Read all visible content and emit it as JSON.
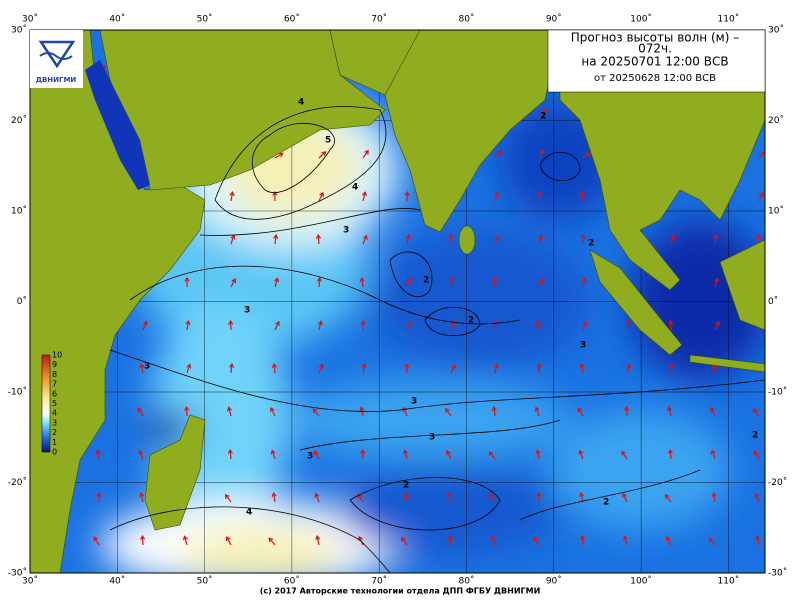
{
  "header": {
    "lines": [
      "Прогноз высоты волн (м) –",
      "072ч.",
      "на 20250701 12:00 ВСВ",
      "от 20250628 12:00 ВСВ"
    ]
  },
  "logo": {
    "text": "ДВНИГМИ"
  },
  "axes": {
    "lon_labels": [
      "30˚",
      "40˚",
      "50˚",
      "60˚",
      "70˚",
      "80˚",
      "90˚",
      "100˚",
      "110˚"
    ],
    "lat_labels": [
      "30˚",
      "20˚",
      "10˚",
      "0˚",
      "-10˚",
      "-20˚",
      "-30˚"
    ]
  },
  "legend": {
    "labels": [
      "10",
      "9",
      "8",
      "7",
      "6",
      "5",
      "4",
      "3",
      "2",
      "1",
      "0"
    ]
  },
  "contour_labels": [
    "4",
    "5",
    "4",
    "3",
    "3",
    "2",
    "2",
    "3",
    "3",
    "3",
    "3",
    "3",
    "2",
    "2",
    "2",
    "2",
    "2",
    "4"
  ],
  "footer": "(c) 2017 Авторские технологии отдела ДПП ФГБУ ДВНИГМИ"
}
